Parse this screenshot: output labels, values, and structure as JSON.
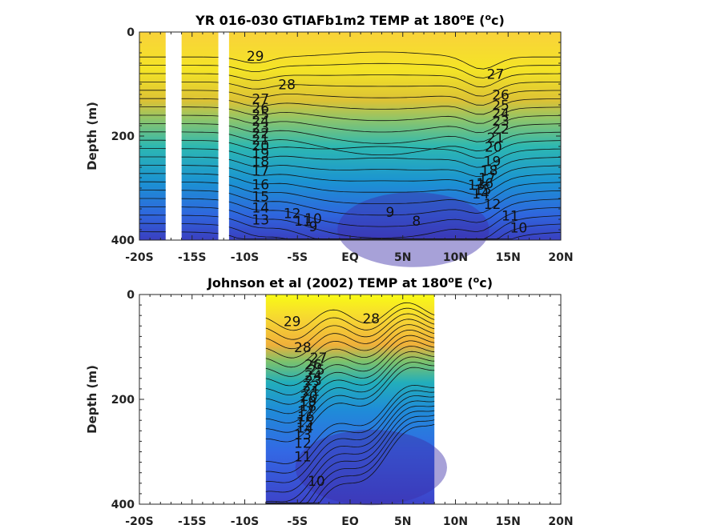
{
  "chart_data": [
    {
      "type": "heatmap",
      "title": "YR 016-030 GTIAFb1m2 TEMP at 180",
      "title_superscript": "o",
      "title_suffix": "E (",
      "title_unit_superscript": "o",
      "title_unit_suffix": "c)",
      "xlabel": "",
      "ylabel": "Depth (m)",
      "xlim": [
        -20,
        20
      ],
      "ylim": [
        0,
        400
      ],
      "y_reversed": true,
      "x_ticks": [
        -20,
        -15,
        -10,
        -5,
        0,
        5,
        10,
        15,
        20
      ],
      "x_tick_labels": [
        "-20S",
        "-15S",
        "-10S",
        "-5S",
        "EQ",
        "5N",
        "10N",
        "15N",
        "20N"
      ],
      "y_ticks": [
        0,
        200,
        400
      ],
      "y_tick_labels": [
        "0",
        "200",
        "400"
      ],
      "colormap": [
        "#3e26a8",
        "#2f61e0",
        "#1d8ed6",
        "#17adc1",
        "#3fbc9e",
        "#85c16d",
        "#c2ba3b",
        "#f3b42c",
        "#f7d733",
        "#f9fb15"
      ],
      "missing_data_lat_ranges": [
        [
          -17.5,
          -16
        ],
        [
          -12.5,
          -11.5
        ]
      ],
      "contour_labels": [
        {
          "text": "29",
          "lat": -9,
          "depth": 55
        },
        {
          "text": "28",
          "lat": -6,
          "depth": 110
        },
        {
          "text": "27",
          "lat": -8.5,
          "depth": 138
        },
        {
          "text": "26",
          "lat": -8.5,
          "depth": 155
        },
        {
          "text": "25",
          "lat": -8.5,
          "depth": 168
        },
        {
          "text": "24",
          "lat": -8.5,
          "depth": 180
        },
        {
          "text": "23",
          "lat": -8.5,
          "depth": 192
        },
        {
          "text": "22",
          "lat": -8.5,
          "depth": 204
        },
        {
          "text": "21",
          "lat": -8.5,
          "depth": 216
        },
        {
          "text": "20",
          "lat": -8.5,
          "depth": 228
        },
        {
          "text": "19",
          "lat": -8.5,
          "depth": 242
        },
        {
          "text": "18",
          "lat": -8.5,
          "depth": 258
        },
        {
          "text": "17",
          "lat": -8.5,
          "depth": 276
        },
        {
          "text": "16",
          "lat": -8.5,
          "depth": 302
        },
        {
          "text": "15",
          "lat": -8.5,
          "depth": 325
        },
        {
          "text": "14",
          "lat": -8.5,
          "depth": 347
        },
        {
          "text": "13",
          "lat": -8.5,
          "depth": 370
        },
        {
          "text": "12",
          "lat": -5.5,
          "depth": 358
        },
        {
          "text": "11",
          "lat": -4.5,
          "depth": 372
        },
        {
          "text": "10",
          "lat": -3.5,
          "depth": 368
        },
        {
          "text": "9",
          "lat": -3.5,
          "depth": 383
        },
        {
          "text": "9",
          "lat": 3.8,
          "depth": 355
        },
        {
          "text": "8",
          "lat": 6.3,
          "depth": 372
        },
        {
          "text": "27",
          "lat": 13.8,
          "depth": 90
        },
        {
          "text": "26",
          "lat": 14.3,
          "depth": 130
        },
        {
          "text": "25",
          "lat": 14.3,
          "depth": 150
        },
        {
          "text": "24",
          "lat": 14.3,
          "depth": 165
        },
        {
          "text": "23",
          "lat": 14.3,
          "depth": 180
        },
        {
          "text": "22",
          "lat": 14.3,
          "depth": 195
        },
        {
          "text": "21",
          "lat": 13.8,
          "depth": 212
        },
        {
          "text": "20",
          "lat": 13.6,
          "depth": 230
        },
        {
          "text": "19",
          "lat": 13.5,
          "depth": 258
        },
        {
          "text": "18",
          "lat": 13.2,
          "depth": 275
        },
        {
          "text": "17",
          "lat": 13.0,
          "depth": 290
        },
        {
          "text": "16",
          "lat": 12.8,
          "depth": 300
        },
        {
          "text": "15",
          "lat": 12.6,
          "depth": 312
        },
        {
          "text": "14",
          "lat": 12.4,
          "depth": 320
        },
        {
          "text": "13",
          "lat": 12.0,
          "depth": 303
        },
        {
          "text": "12",
          "lat": 13.5,
          "depth": 340
        },
        {
          "text": "11",
          "lat": 15.2,
          "depth": 362
        },
        {
          "text": "10",
          "lat": 16.0,
          "depth": 385
        }
      ]
    },
    {
      "type": "heatmap",
      "title": "Johnson et al (2002) TEMP at 180",
      "title_superscript": "o",
      "title_suffix": "E (",
      "title_unit_superscript": "o",
      "title_unit_suffix": "c)",
      "xlabel": "",
      "ylabel": "Depth (m)",
      "xlim": [
        -20,
        20
      ],
      "ylim": [
        0,
        400
      ],
      "y_reversed": true,
      "data_lat_range": [
        -8,
        8
      ],
      "x_ticks": [
        -20,
        -15,
        -10,
        -5,
        0,
        5,
        10,
        15,
        20
      ],
      "x_tick_labels": [
        "-20S",
        "-15S",
        "-10S",
        "-5S",
        "EQ",
        "5N",
        "10N",
        "15N",
        "20N"
      ],
      "y_ticks": [
        0,
        200,
        400
      ],
      "y_tick_labels": [
        "0",
        "200",
        "400"
      ],
      "colormap": [
        "#3e26a8",
        "#2f61e0",
        "#1d8ed6",
        "#17adc1",
        "#3fbc9e",
        "#85c16d",
        "#c2ba3b",
        "#f3b42c",
        "#f7d733",
        "#f9fb15"
      ],
      "contour_labels": [
        {
          "text": "29",
          "lat": -5.5,
          "depth": 60
        },
        {
          "text": "28",
          "lat": 2.0,
          "depth": 55
        },
        {
          "text": "28",
          "lat": -4.5,
          "depth": 110
        },
        {
          "text": "27",
          "lat": -3.0,
          "depth": 130
        },
        {
          "text": "26",
          "lat": -3.5,
          "depth": 143
        },
        {
          "text": "25",
          "lat": -3.2,
          "depth": 153
        },
        {
          "text": "24",
          "lat": -3.5,
          "depth": 163
        },
        {
          "text": "23",
          "lat": -3.5,
          "depth": 173
        },
        {
          "text": "22",
          "lat": -3.7,
          "depth": 183
        },
        {
          "text": "21",
          "lat": -3.7,
          "depth": 193
        },
        {
          "text": "20",
          "lat": -3.9,
          "depth": 203
        },
        {
          "text": "19",
          "lat": -4.0,
          "depth": 213
        },
        {
          "text": "18",
          "lat": -4.0,
          "depth": 222
        },
        {
          "text": "17",
          "lat": -4.2,
          "depth": 232
        },
        {
          "text": "16",
          "lat": -4.2,
          "depth": 242
        },
        {
          "text": "15",
          "lat": -4.3,
          "depth": 253
        },
        {
          "text": "14",
          "lat": -4.3,
          "depth": 263
        },
        {
          "text": "13",
          "lat": -4.5,
          "depth": 276
        },
        {
          "text": "12",
          "lat": -4.5,
          "depth": 292
        },
        {
          "text": "11",
          "lat": -4.5,
          "depth": 318
        },
        {
          "text": "10",
          "lat": -3.2,
          "depth": 365
        }
      ]
    }
  ]
}
